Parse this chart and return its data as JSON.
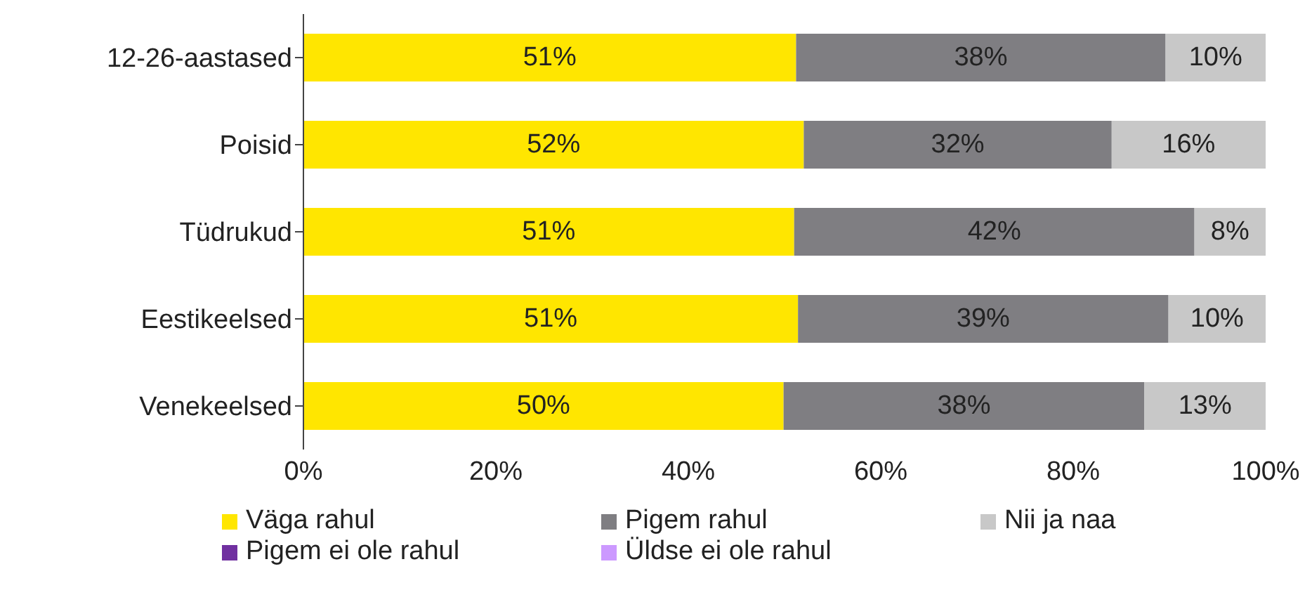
{
  "chart_data": {
    "type": "bar",
    "orientation": "horizontal",
    "stacked": true,
    "categories": [
      "12-26-aastased",
      "Poisid",
      "Tüdrukud",
      "Eestikeelsed",
      "Venekeelsed"
    ],
    "series": [
      {
        "name": "Väga rahul",
        "color": "#ffe600",
        "values": [
          51.2,
          52.0,
          51.0,
          51.4,
          49.9
        ],
        "value_labels": [
          "51%",
          "52%",
          "51%",
          "51%",
          "50%"
        ]
      },
      {
        "name": "Pigem rahul",
        "color": "#7f7e82",
        "values": [
          38.4,
          32.0,
          41.6,
          38.5,
          37.5
        ],
        "value_labels": [
          "38%",
          "32%",
          "42%",
          "39%",
          "38%"
        ]
      },
      {
        "name": "Nii ja naa",
        "color": "#c8c8c8",
        "values": [
          10.4,
          16.0,
          7.6,
          10.1,
          12.6
        ],
        "value_labels": [
          "10%",
          "16%",
          "8%",
          "10%",
          "13%"
        ]
      },
      {
        "name": "Pigem ei ole rahul",
        "color": "#7030a0",
        "values": [
          0,
          0,
          0,
          0,
          0
        ]
      },
      {
        "name": "Üldse ei ole rahul",
        "color": "#cc99ff",
        "values": [
          0,
          0,
          0,
          0,
          0
        ]
      }
    ],
    "xlim": [
      0,
      100
    ],
    "xticks": [
      {
        "value": 0,
        "label": "0%"
      },
      {
        "value": 20,
        "label": "20%"
      },
      {
        "value": 40,
        "label": "40%"
      },
      {
        "value": 60,
        "label": "60%"
      },
      {
        "value": 80,
        "label": "80%"
      },
      {
        "value": 100,
        "label": "100%"
      }
    ],
    "legend": "bottom",
    "grid": false
  }
}
